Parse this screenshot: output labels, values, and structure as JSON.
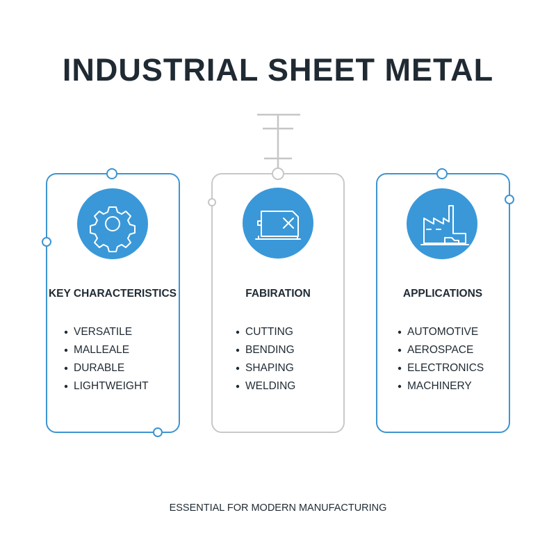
{
  "title": "INDUSTRIAL SHEET METAL",
  "cards": [
    {
      "heading": "KEY CHARACTERISTICS",
      "items": [
        "VERSATILE",
        "MALLEALE",
        "DURABLE",
        "LIGHTWEIGHT"
      ]
    },
    {
      "heading": "FABIRATION",
      "items": [
        "CUTTING",
        "BENDING",
        "SHAPING",
        "WELDING"
      ]
    },
    {
      "heading": "APPLICATIONS",
      "items": [
        "AUTOMOTIVE",
        "AEROSPACE",
        "ELECTRONICS",
        "MACHINERY"
      ]
    }
  ],
  "footer": "ESSENTIAL FOR MODERN MANUFACTURING"
}
